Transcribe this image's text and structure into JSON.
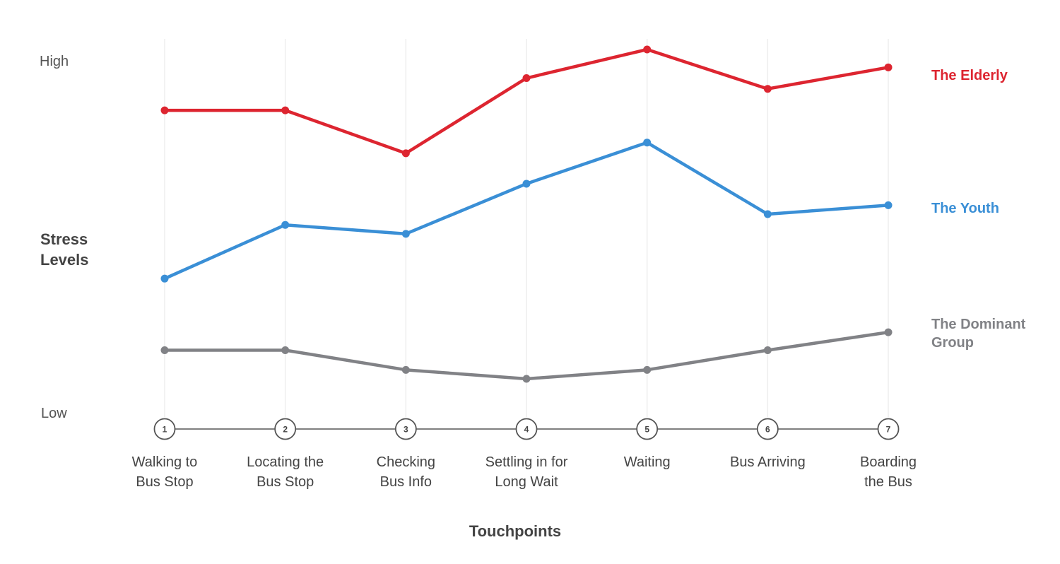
{
  "chart_data": {
    "type": "line",
    "ylabel": "Stress Levels",
    "xlabel": "Touchpoints",
    "y_tick_labels": {
      "high": "High",
      "low": "Low"
    },
    "ylim": [
      0,
      10
    ],
    "grid": "vertical",
    "step_numbers": [
      "1",
      "2",
      "3",
      "4",
      "5",
      "6",
      "7"
    ],
    "categories": [
      "Walking to Bus Stop",
      "Locating the Bus Stop",
      "Checking Bus Info",
      "Settling in for Long Wait",
      "Waiting",
      "Bus Arriving",
      "Boarding the Bus"
    ],
    "series": [
      {
        "name": "The Elderly",
        "color": "#dd2530",
        "values": [
          8.5,
          8.5,
          7.3,
          9.4,
          10.2,
          9.1,
          9.7
        ]
      },
      {
        "name": "The Youth",
        "color": "#3a8fd6",
        "values": [
          3.8,
          5.3,
          5.05,
          6.45,
          7.6,
          5.6,
          5.85
        ]
      },
      {
        "name": "The Dominant Group",
        "color": "#818286",
        "values": [
          1.8,
          1.8,
          1.25,
          1.0,
          1.25,
          1.8,
          2.3
        ]
      }
    ]
  }
}
